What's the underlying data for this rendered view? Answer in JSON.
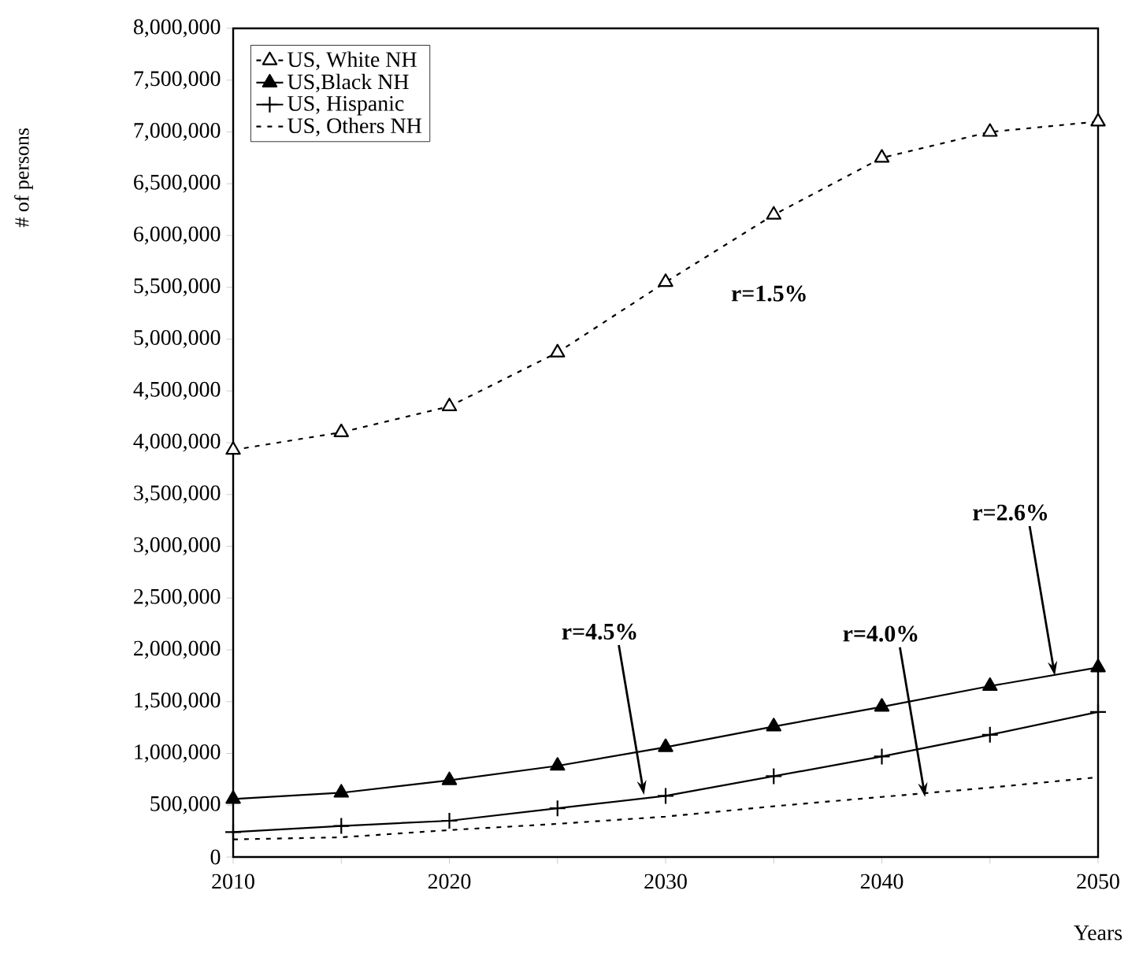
{
  "chart_data": {
    "type": "line",
    "xlabel": "Years",
    "ylabel": "# of persons",
    "x": [
      2010,
      2015,
      2020,
      2025,
      2030,
      2035,
      2040,
      2045,
      2050
    ],
    "series": [
      {
        "name": "US, White NH",
        "color": "#000000",
        "marker": "triangle",
        "line_style": "dashed",
        "values": [
          3930000,
          4100000,
          4350000,
          4870000,
          5550000,
          6200000,
          6750000,
          7000000,
          7100000
        ]
      },
      {
        "name": "US,Black NH",
        "color": "#000000",
        "marker": "triangle",
        "line_style": "solid",
        "values": [
          560000,
          620000,
          740000,
          880000,
          1060000,
          1260000,
          1450000,
          1650000,
          1830000
        ]
      },
      {
        "name": "US, Hispanic",
        "color": "#000000",
        "marker": "cross",
        "line_style": "solid",
        "values": [
          240000,
          300000,
          350000,
          470000,
          590000,
          780000,
          970000,
          1180000,
          1400000
        ]
      },
      {
        "name": "US, Others NH",
        "color": "#000000",
        "marker": "none",
        "line_style": "dashed",
        "values": [
          170000,
          190000,
          260000,
          320000,
          390000,
          490000,
          580000,
          670000,
          770000
        ]
      }
    ],
    "xlim": [
      2010,
      2050
    ],
    "xticks": [
      2010,
      {
        "value": 2015,
        "label": null
      },
      2020,
      {
        "value": 2025,
        "label": null
      },
      2030,
      {
        "value": 2035,
        "label": null
      },
      2040,
      {
        "value": 2045,
        "label": null
      },
      2050
    ],
    "ylim": [
      0,
      8000000
    ],
    "yticks": [
      0,
      {
        "value": 500000,
        "label": "500,000"
      },
      {
        "value": 1000000,
        "label": "1,000,000"
      },
      {
        "value": 1500000,
        "label": "1,500,000"
      },
      {
        "value": 2000000,
        "label": "2,000,000"
      },
      {
        "value": 2500000,
        "label": "2,500,000"
      },
      {
        "value": 3000000,
        "label": "3,000,000"
      },
      {
        "value": 3500000,
        "label": "3,500,000"
      },
      {
        "value": 4000000,
        "label": "4,000,000"
      },
      {
        "value": 4500000,
        "label": "4,500,000"
      },
      {
        "value": 5000000,
        "label": "5,000,000"
      },
      {
        "value": 5500000,
        "label": "5,500,000"
      },
      {
        "value": 6000000,
        "label": "6,000,000"
      },
      {
        "value": 6500000,
        "label": "6,500,000"
      },
      {
        "value": 7000000,
        "label": "7,000,000"
      },
      {
        "value": 7500000,
        "label": "7,500,000"
      },
      {
        "value": 8000000,
        "label": "8,000,000"
      }
    ],
    "grid": false,
    "legend": "top left",
    "annotations": [
      "r=1.5%",
      {
        "text": "r=2.6%",
        "x": 2048,
        "y": 1750000
      },
      {
        "text": "r=4.5%",
        "x": 2029,
        "y": 600000
      },
      {
        "text": "r=4.0%",
        "x": 2042,
        "y": 580000
      }
    ]
  }
}
